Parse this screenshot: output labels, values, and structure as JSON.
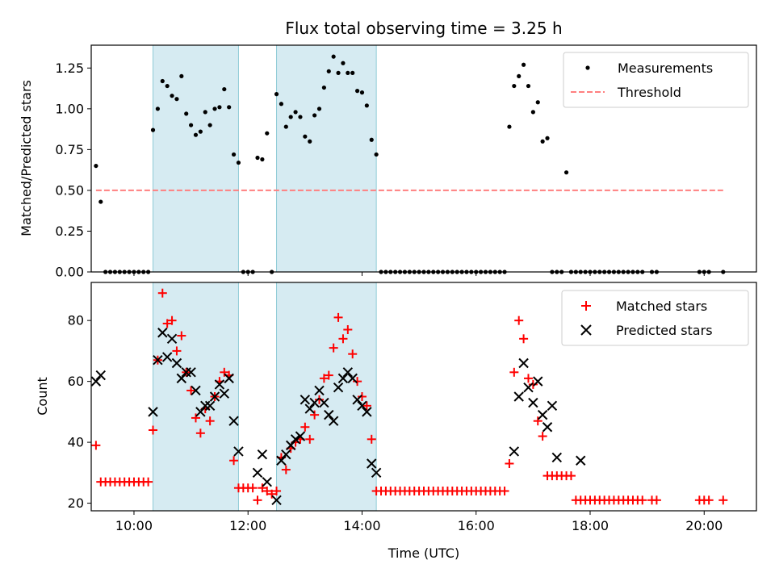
{
  "chart_data": [
    {
      "type": "scatter",
      "title": "Flux total observing time = 3.25 h",
      "ylabel": "Matched/Predicted stars",
      "xlabel": "",
      "xlim": [
        "09:15",
        "20:55"
      ],
      "ylim": [
        0,
        1.39
      ],
      "yticks": [
        "0.00",
        "0.25",
        "0.50",
        "0.75",
        "1.00",
        "1.25"
      ],
      "shaded_intervals": [
        [
          "10:20",
          "11:50"
        ],
        [
          "12:30",
          "14:15"
        ]
      ],
      "legend": {
        "position": "top-right",
        "entries": [
          "Measurements",
          "Threshold"
        ]
      },
      "series": [
        {
          "name": "Measurements",
          "marker": "dot",
          "color": "#000000",
          "x": [
            "09:20",
            "09:25",
            "09:30",
            "09:35",
            "09:40",
            "09:45",
            "09:50",
            "09:55",
            "10:00",
            "10:05",
            "10:10",
            "10:15",
            "10:20",
            "10:25",
            "10:30",
            "10:35",
            "10:40",
            "10:45",
            "10:50",
            "10:55",
            "11:00",
            "11:05",
            "11:10",
            "11:15",
            "11:20",
            "11:25",
            "11:30",
            "11:35",
            "11:40",
            "11:45",
            "11:50",
            "11:55",
            "12:00",
            "12:05",
            "12:10",
            "12:15",
            "12:20",
            "12:25",
            "12:30",
            "12:35",
            "12:40",
            "12:45",
            "12:50",
            "12:55",
            "13:00",
            "13:05",
            "13:10",
            "13:15",
            "13:20",
            "13:25",
            "13:30",
            "13:35",
            "13:40",
            "13:45",
            "13:50",
            "13:55",
            "14:00",
            "14:05",
            "14:10",
            "14:15",
            "14:20",
            "14:25",
            "14:30",
            "14:35",
            "14:40",
            "14:45",
            "14:50",
            "14:55",
            "15:00",
            "15:05",
            "15:10",
            "15:15",
            "15:20",
            "15:25",
            "15:30",
            "15:35",
            "15:40",
            "15:45",
            "15:50",
            "15:55",
            "16:00",
            "16:05",
            "16:10",
            "16:15",
            "16:20",
            "16:25",
            "16:30",
            "16:35",
            "16:40",
            "16:45",
            "16:50",
            "16:55",
            "17:00",
            "17:05",
            "17:10",
            "17:15",
            "17:20",
            "17:25",
            "17:30",
            "17:35",
            "17:40",
            "17:45",
            "17:50",
            "17:55",
            "18:00",
            "18:05",
            "18:10",
            "18:15",
            "18:20",
            "18:25",
            "18:30",
            "18:35",
            "18:40",
            "18:45",
            "18:50",
            "18:55",
            "19:05",
            "19:10",
            "19:55",
            "20:00",
            "20:05",
            "20:20"
          ],
          "y": [
            0.65,
            0.43,
            0,
            0,
            0,
            0,
            0,
            0,
            0,
            0,
            0,
            0,
            0.87,
            1.0,
            1.17,
            1.14,
            1.08,
            1.06,
            1.2,
            0.97,
            0.9,
            0.84,
            0.86,
            0.98,
            0.9,
            1.0,
            1.01,
            1.12,
            1.01,
            0.72,
            0.67,
            0,
            0,
            0,
            0.7,
            0.69,
            0.85,
            0,
            1.09,
            1.03,
            0.89,
            0.95,
            0.98,
            0.95,
            0.83,
            0.8,
            0.96,
            1.0,
            1.13,
            1.23,
            1.32,
            1.22,
            1.28,
            1.22,
            1.22,
            1.11,
            1.1,
            1.02,
            0.81,
            0.72,
            0,
            0,
            0,
            0,
            0,
            0,
            0,
            0,
            0,
            0,
            0,
            0,
            0,
            0,
            0,
            0,
            0,
            0,
            0,
            0,
            0,
            0,
            0,
            0,
            0,
            0,
            0,
            0.89,
            1.14,
            1.2,
            1.27,
            1.14,
            0.98,
            1.04,
            0.8,
            0.82,
            0,
            0,
            0,
            0.61,
            0,
            0,
            0,
            0,
            0,
            0,
            0,
            0,
            0,
            0,
            0,
            0,
            0,
            0,
            0,
            0,
            0,
            0,
            0,
            0,
            0,
            0
          ]
        },
        {
          "name": "Threshold",
          "line": "dashed",
          "color": "#ff7f7f",
          "x": [
            "09:20",
            "20:20"
          ],
          "y": [
            0.5,
            0.5
          ]
        }
      ]
    },
    {
      "type": "scatter",
      "title": "",
      "ylabel": "Count",
      "xlabel": "Time (UTC)",
      "xlim": [
        "09:15",
        "20:55"
      ],
      "ylim": [
        17.5,
        92.5
      ],
      "yticks": [
        "20",
        "40",
        "60",
        "80"
      ],
      "xticks": [
        "10:00",
        "12:00",
        "14:00",
        "16:00",
        "18:00",
        "20:00"
      ],
      "shaded_intervals": [
        [
          "10:20",
          "11:50"
        ],
        [
          "12:30",
          "14:15"
        ]
      ],
      "legend": {
        "position": "top-right",
        "entries": [
          "Matched stars",
          "Predicted stars"
        ]
      },
      "series": [
        {
          "name": "Matched stars",
          "marker": "plus",
          "color": "#ff0000",
          "x": [
            "09:20",
            "09:25",
            "09:30",
            "09:35",
            "09:40",
            "09:45",
            "09:50",
            "09:55",
            "10:00",
            "10:05",
            "10:10",
            "10:15",
            "10:20",
            "10:25",
            "10:30",
            "10:35",
            "10:40",
            "10:45",
            "10:50",
            "10:55",
            "11:00",
            "11:05",
            "11:10",
            "11:15",
            "11:20",
            "11:25",
            "11:30",
            "11:35",
            "11:40",
            "11:45",
            "11:50",
            "11:55",
            "12:00",
            "12:05",
            "12:10",
            "12:15",
            "12:20",
            "12:25",
            "12:30",
            "12:35",
            "12:40",
            "12:45",
            "12:50",
            "12:55",
            "13:00",
            "13:05",
            "13:10",
            "13:15",
            "13:20",
            "13:25",
            "13:30",
            "13:35",
            "13:40",
            "13:45",
            "13:50",
            "13:55",
            "14:00",
            "14:05",
            "14:10",
            "14:15",
            "14:20",
            "14:25",
            "14:30",
            "14:35",
            "14:40",
            "14:45",
            "14:50",
            "14:55",
            "15:00",
            "15:05",
            "15:10",
            "15:15",
            "15:20",
            "15:25",
            "15:30",
            "15:35",
            "15:40",
            "15:45",
            "15:50",
            "15:55",
            "16:00",
            "16:05",
            "16:10",
            "16:15",
            "16:20",
            "16:25",
            "16:30",
            "16:35",
            "16:40",
            "16:45",
            "16:50",
            "16:55",
            "17:00",
            "17:05",
            "17:10",
            "17:15",
            "17:20",
            "17:25",
            "17:30",
            "17:35",
            "17:40",
            "17:45",
            "17:50",
            "17:55",
            "18:00",
            "18:05",
            "18:10",
            "18:15",
            "18:20",
            "18:25",
            "18:30",
            "18:35",
            "18:40",
            "18:45",
            "18:50",
            "18:55",
            "19:05",
            "19:10",
            "19:55",
            "20:00",
            "20:05",
            "20:20"
          ],
          "y": [
            39,
            27,
            27,
            27,
            27,
            27,
            27,
            27,
            27,
            27,
            27,
            27,
            44,
            67,
            89,
            79,
            80,
            70,
            75,
            63,
            57,
            48,
            43,
            51,
            47,
            55,
            60,
            63,
            62,
            34,
            25,
            25,
            25,
            25,
            21,
            25,
            24,
            23,
            24,
            35,
            31,
            38,
            40,
            41,
            45,
            41,
            49,
            54,
            61,
            62,
            71,
            81,
            74,
            77,
            69,
            60,
            55,
            52,
            41,
            24,
            24,
            24,
            24,
            24,
            24,
            24,
            24,
            24,
            24,
            24,
            24,
            24,
            24,
            24,
            24,
            24,
            24,
            24,
            24,
            24,
            24,
            24,
            24,
            24,
            24,
            24,
            24,
            33,
            63,
            80,
            74,
            61,
            59,
            47,
            42,
            29,
            29,
            29,
            29,
            29,
            29,
            21,
            21,
            21,
            21,
            21,
            21,
            21,
            21,
            21,
            21,
            21,
            21,
            21,
            21,
            21,
            21,
            21,
            21,
            21,
            21,
            21
          ]
        },
        {
          "name": "Predicted stars",
          "marker": "x",
          "color": "#000000",
          "x": [
            "09:20",
            "09:25",
            "10:20",
            "10:25",
            "10:30",
            "10:35",
            "10:40",
            "10:45",
            "10:50",
            "10:55",
            "11:00",
            "11:05",
            "11:10",
            "11:15",
            "11:20",
            "11:25",
            "11:30",
            "11:35",
            "11:40",
            "11:45",
            "11:50",
            "12:10",
            "12:15",
            "12:20",
            "12:30",
            "12:35",
            "12:40",
            "12:45",
            "12:50",
            "12:55",
            "13:00",
            "13:05",
            "13:10",
            "13:15",
            "13:20",
            "13:25",
            "13:30",
            "13:35",
            "13:40",
            "13:45",
            "13:50",
            "13:55",
            "14:00",
            "14:05",
            "14:10",
            "14:15",
            "16:40",
            "16:45",
            "16:50",
            "16:55",
            "17:00",
            "17:05",
            "17:10",
            "17:15",
            "17:20",
            "17:25",
            "17:50"
          ],
          "y": [
            60,
            62,
            50,
            67,
            76,
            68,
            74,
            66,
            61,
            63,
            63,
            57,
            50,
            52,
            52,
            55,
            59,
            56,
            61,
            47,
            37,
            30,
            36,
            27,
            21,
            34,
            36,
            39,
            41,
            42,
            54,
            51,
            53,
            57,
            53,
            49,
            47,
            58,
            61,
            63,
            61,
            54,
            52,
            50,
            33,
            30,
            37,
            55,
            66,
            58,
            53,
            60,
            49,
            45,
            52,
            35,
            34
          ]
        }
      ]
    }
  ]
}
